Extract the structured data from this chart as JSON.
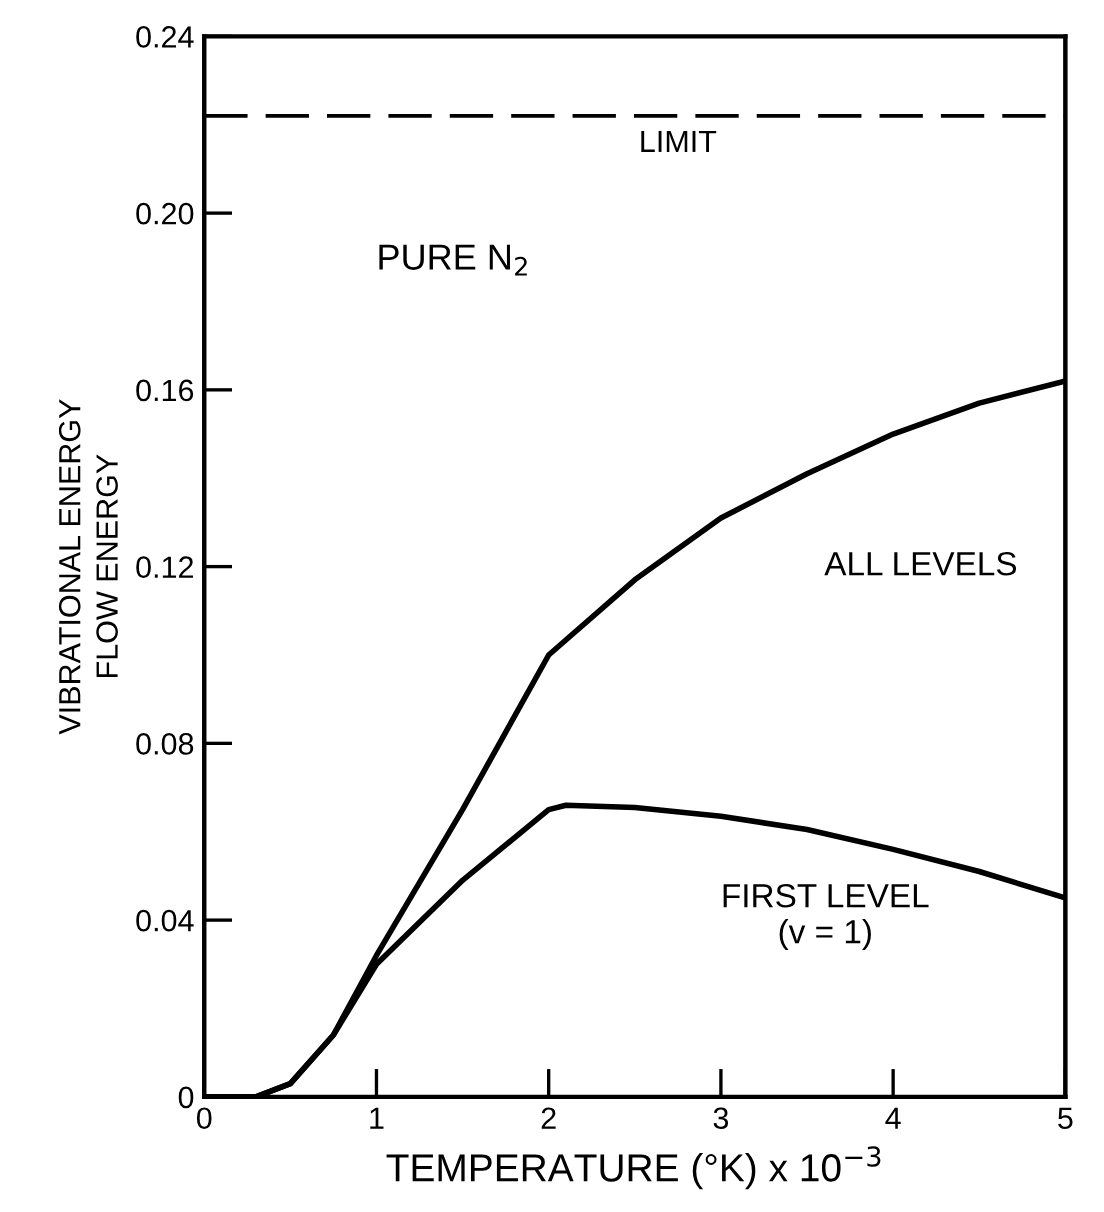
{
  "chart_data": {
    "type": "line",
    "xlabel": "TEMPERATURE (°K) x 10$^{−3}$",
    "ylabel": "VIBRATIONAL ENERGY\nFLOW ENERGY",
    "annotations": [
      "PURE N$_{2}$"
    ],
    "series": [
      {
        "name": "ALL LEVELS",
        "color": "#000000",
        "x": [
          0,
          0.3,
          0.5,
          0.75,
          1,
          1.5,
          2,
          2.5,
          3,
          3.5,
          4,
          4.5,
          5
        ],
        "values": [
          0,
          0,
          0.003,
          0.014,
          0.032,
          0.065,
          0.1,
          0.117,
          0.131,
          0.141,
          0.15,
          0.157,
          0.162
        ]
      },
      {
        "name": "FIRST LEVEL\n(v = 1)",
        "color": "#000000",
        "x": [
          0,
          0.3,
          0.5,
          0.75,
          1,
          1.5,
          2,
          2.1,
          2.5,
          3,
          3.5,
          4,
          4.5,
          5
        ],
        "values": [
          0,
          0,
          0.003,
          0.014,
          0.03,
          0.049,
          0.065,
          0.066,
          0.0655,
          0.0635,
          0.0605,
          0.056,
          0.051,
          0.045
        ]
      }
    ],
    "ref_lines": [
      {
        "axis": "y",
        "value": 0.222,
        "label": "LIMIT",
        "line_style": "dashed",
        "color": "#000000"
      }
    ],
    "xlim": [
      0,
      5
    ],
    "ylim": [
      0,
      0.24
    ],
    "xticks": [
      0,
      1,
      2,
      3,
      4,
      5
    ],
    "yticks": [
      0,
      {
        "value": 0.04,
        "label": "0.04"
      },
      {
        "value": 0.08,
        "label": "0.08"
      },
      {
        "value": 0.12,
        "label": "0.12"
      },
      {
        "value": 0.16,
        "label": "0.16"
      },
      {
        "value": 0.2,
        "label": "0.20"
      },
      {
        "value": 0.24,
        "label": "0.24"
      }
    ],
    "grid": false,
    "legend": false,
    "marker": "none",
    "line_style": "solid"
  }
}
